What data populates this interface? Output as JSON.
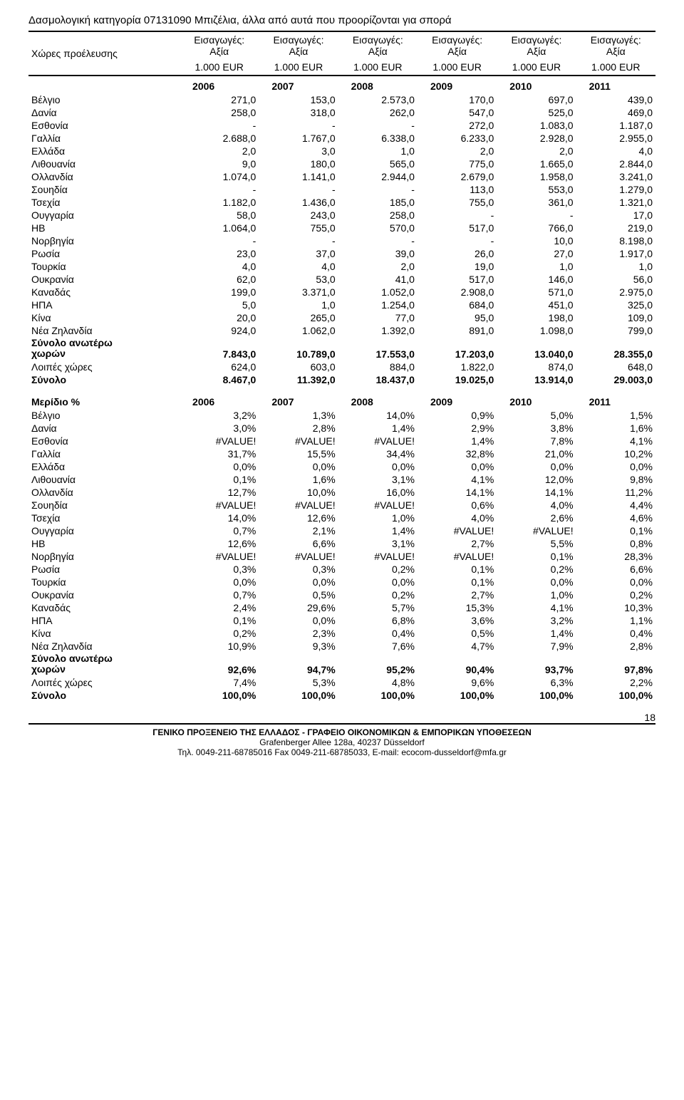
{
  "title": "Δασμολογική κατηγορία 07131090 Μπιζέλια, άλλα από αυτά που προορίζονται για σπορά",
  "header": {
    "origin": "Χώρες προέλευσης",
    "col_top": "Εισαγωγές:\nΑξία",
    "col_bottom": "1.000 EUR"
  },
  "years": [
    "2006",
    "2007",
    "2008",
    "2009",
    "2010",
    "2011"
  ],
  "rows": [
    {
      "label": "Βέλγιο",
      "v": [
        "271,0",
        "153,0",
        "2.573,0",
        "170,0",
        "697,0",
        "439,0"
      ]
    },
    {
      "label": "Δανία",
      "v": [
        "258,0",
        "318,0",
        "262,0",
        "547,0",
        "525,0",
        "469,0"
      ]
    },
    {
      "label": "Εσθονία",
      "v": [
        "-",
        "-",
        "-",
        "272,0",
        "1.083,0",
        "1.187,0"
      ]
    },
    {
      "label": "Γαλλία",
      "v": [
        "2.688,0",
        "1.767,0",
        "6.338,0",
        "6.233,0",
        "2.928,0",
        "2.955,0"
      ]
    },
    {
      "label": "Ελλάδα",
      "v": [
        "2,0",
        "3,0",
        "1,0",
        "2,0",
        "2,0",
        "4,0"
      ]
    },
    {
      "label": "Λιθουανία",
      "v": [
        "9,0",
        "180,0",
        "565,0",
        "775,0",
        "1.665,0",
        "2.844,0"
      ]
    },
    {
      "label": "Ολλανδία",
      "v": [
        "1.074,0",
        "1.141,0",
        "2.944,0",
        "2.679,0",
        "1.958,0",
        "3.241,0"
      ]
    },
    {
      "label": "Σουηδία",
      "v": [
        "-",
        "-",
        "-",
        "113,0",
        "553,0",
        "1.279,0"
      ]
    },
    {
      "label": "Τσεχία",
      "v": [
        "1.182,0",
        "1.436,0",
        "185,0",
        "755,0",
        "361,0",
        "1.321,0"
      ]
    },
    {
      "label": "Ουγγαρία",
      "v": [
        "58,0",
        "243,0",
        "258,0",
        "-",
        "-",
        "17,0"
      ]
    },
    {
      "label": "ΗΒ",
      "v": [
        "1.064,0",
        "755,0",
        "570,0",
        "517,0",
        "766,0",
        "219,0"
      ]
    },
    {
      "label": "Νορβηγία",
      "v": [
        "-",
        "-",
        "-",
        "-",
        "10,0",
        "8.198,0"
      ]
    },
    {
      "label": "Ρωσία",
      "v": [
        "23,0",
        "37,0",
        "39,0",
        "26,0",
        "27,0",
        "1.917,0"
      ]
    },
    {
      "label": "Τουρκία",
      "v": [
        "4,0",
        "4,0",
        "2,0",
        "19,0",
        "1,0",
        "1,0"
      ]
    },
    {
      "label": "Ουκρανία",
      "v": [
        "62,0",
        "53,0",
        "41,0",
        "517,0",
        "146,0",
        "56,0"
      ]
    },
    {
      "label": "Καναδάς",
      "v": [
        "199,0",
        "3.371,0",
        "1.052,0",
        "2.908,0",
        "571,0",
        "2.975,0"
      ]
    },
    {
      "label": "ΗΠΑ",
      "v": [
        "5,0",
        "1,0",
        "1.254,0",
        "684,0",
        "451,0",
        "325,0"
      ]
    },
    {
      "label": "Κίνα",
      "v": [
        "20,0",
        "265,0",
        "77,0",
        "95,0",
        "198,0",
        "109,0"
      ]
    },
    {
      "label": "Νέα Ζηλανδία",
      "v": [
        "924,0",
        "1.062,0",
        "1.392,0",
        "891,0",
        "1.098,0",
        "799,0"
      ]
    }
  ],
  "totals": [
    {
      "label": "Σύνολο ανωτέρω\nχωρών",
      "v": [
        "7.843,0",
        "10.789,0",
        "17.553,0",
        "17.203,0",
        "13.040,0",
        "28.355,0"
      ],
      "bold": true
    },
    {
      "label": "Λοιπές χώρες",
      "v": [
        "624,0",
        "603,0",
        "884,0",
        "1.822,0",
        "874,0",
        "648,0"
      ],
      "bold": false
    },
    {
      "label": "Σύνολο",
      "v": [
        "8.467,0",
        "11.392,0",
        "18.437,0",
        "19.025,0",
        "13.914,0",
        "29.003,0"
      ],
      "bold": true
    }
  ],
  "share_label": "Μερίδιο %",
  "share_rows": [
    {
      "label": "Βέλγιο",
      "v": [
        "3,2%",
        "1,3%",
        "14,0%",
        "0,9%",
        "5,0%",
        "1,5%"
      ]
    },
    {
      "label": "Δανία",
      "v": [
        "3,0%",
        "2,8%",
        "1,4%",
        "2,9%",
        "3,8%",
        "1,6%"
      ]
    },
    {
      "label": "Εσθονία",
      "v": [
        "#VALUE!",
        "#VALUE!",
        "#VALUE!",
        "1,4%",
        "7,8%",
        "4,1%"
      ]
    },
    {
      "label": "Γαλλία",
      "v": [
        "31,7%",
        "15,5%",
        "34,4%",
        "32,8%",
        "21,0%",
        "10,2%"
      ]
    },
    {
      "label": "Ελλάδα",
      "v": [
        "0,0%",
        "0,0%",
        "0,0%",
        "0,0%",
        "0,0%",
        "0,0%"
      ]
    },
    {
      "label": "Λιθουανία",
      "v": [
        "0,1%",
        "1,6%",
        "3,1%",
        "4,1%",
        "12,0%",
        "9,8%"
      ]
    },
    {
      "label": "Ολλανδία",
      "v": [
        "12,7%",
        "10,0%",
        "16,0%",
        "14,1%",
        "14,1%",
        "11,2%"
      ]
    },
    {
      "label": "Σουηδία",
      "v": [
        "#VALUE!",
        "#VALUE!",
        "#VALUE!",
        "0,6%",
        "4,0%",
        "4,4%"
      ]
    },
    {
      "label": "Τσεχία",
      "v": [
        "14,0%",
        "12,6%",
        "1,0%",
        "4,0%",
        "2,6%",
        "4,6%"
      ]
    },
    {
      "label": "Ουγγαρία",
      "v": [
        "0,7%",
        "2,1%",
        "1,4%",
        "#VALUE!",
        "#VALUE!",
        "0,1%"
      ]
    },
    {
      "label": "ΗΒ",
      "v": [
        "12,6%",
        "6,6%",
        "3,1%",
        "2,7%",
        "5,5%",
        "0,8%"
      ]
    },
    {
      "label": "Νορβηγία",
      "v": [
        "#VALUE!",
        "#VALUE!",
        "#VALUE!",
        "#VALUE!",
        "0,1%",
        "28,3%"
      ]
    },
    {
      "label": "Ρωσία",
      "v": [
        "0,3%",
        "0,3%",
        "0,2%",
        "0,1%",
        "0,2%",
        "6,6%"
      ]
    },
    {
      "label": "Τουρκία",
      "v": [
        "0,0%",
        "0,0%",
        "0,0%",
        "0,1%",
        "0,0%",
        "0,0%"
      ]
    },
    {
      "label": "Ουκρανία",
      "v": [
        "0,7%",
        "0,5%",
        "0,2%",
        "2,7%",
        "1,0%",
        "0,2%"
      ]
    },
    {
      "label": "Καναδάς",
      "v": [
        "2,4%",
        "29,6%",
        "5,7%",
        "15,3%",
        "4,1%",
        "10,3%"
      ]
    },
    {
      "label": "ΗΠΑ",
      "v": [
        "0,1%",
        "0,0%",
        "6,8%",
        "3,6%",
        "3,2%",
        "1,1%"
      ]
    },
    {
      "label": "Κίνα",
      "v": [
        "0,2%",
        "2,3%",
        "0,4%",
        "0,5%",
        "1,4%",
        "0,4%"
      ]
    },
    {
      "label": "Νέα Ζηλανδία",
      "v": [
        "10,9%",
        "9,3%",
        "7,6%",
        "4,7%",
        "7,9%",
        "2,8%"
      ]
    }
  ],
  "share_totals": [
    {
      "label": "Σύνολο ανωτέρω\nχωρών",
      "v": [
        "92,6%",
        "94,7%",
        "95,2%",
        "90,4%",
        "93,7%",
        "97,8%"
      ],
      "bold": true
    },
    {
      "label": "Λοιπές χώρες",
      "v": [
        "7,4%",
        "5,3%",
        "4,8%",
        "9,6%",
        "6,3%",
        "2,2%"
      ],
      "bold": false
    },
    {
      "label": "Σύνολο",
      "v": [
        "100,0%",
        "100,0%",
        "100,0%",
        "100,0%",
        "100,0%",
        "100,0%"
      ],
      "bold": true
    }
  ],
  "footer": {
    "page": "18",
    "line1": "ΓΕΝΙΚΟ ΠΡΟΞΕΝΕΙΟ ΤΗΣ ΕΛΛΑΔΟΣ - ΓΡΑΦΕΙΟ ΟΙΚΟΝΟΜΙΚΩΝ & ΕΜΠΟΡΙΚΩΝ ΥΠΟΘΕΣΕΩΝ",
    "line2": "Grafenberger Allee 128a, 40237 Düsseldorf",
    "line3": "Τηλ. 0049-211-68785016 Fax 0049-211-68785033, E-mail: ecocom-dusseldorf@mfa.gr"
  }
}
